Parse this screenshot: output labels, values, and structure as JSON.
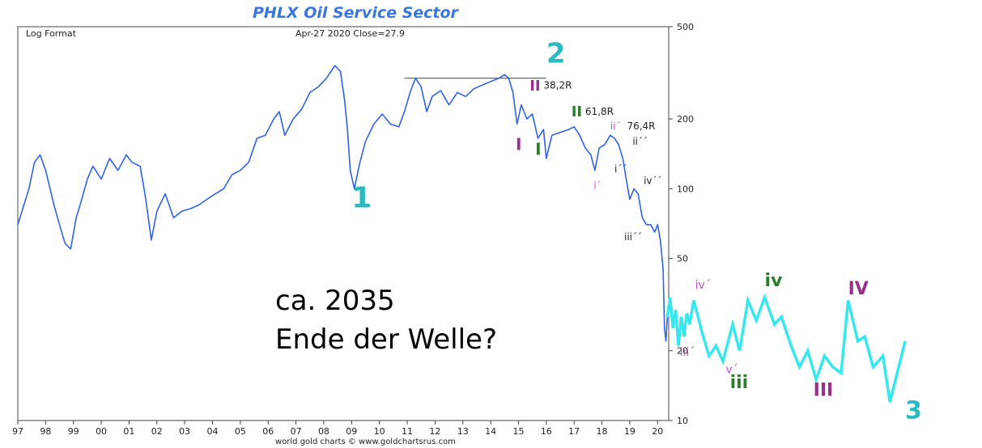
{
  "chart_data": {
    "type": "line",
    "title": "PHLX Oil Service Sector",
    "subtitle_left": "Log Format",
    "subtitle_center": "Apr-27  2020   Close=27.9",
    "credit": "world gold charts © www.goldchartsrus.com",
    "y_scale": "log",
    "ylim": [
      10,
      500
    ],
    "y_ticks": [
      "500",
      "200",
      "100",
      "50",
      "20",
      "10"
    ],
    "y_tick_values": [
      500,
      200,
      100,
      50,
      20,
      10
    ],
    "x_ticks": [
      "97",
      "98",
      "99",
      "00",
      "01",
      "02",
      "03",
      "04",
      "05",
      "06",
      "07",
      "08",
      "09",
      "10",
      "11",
      "12",
      "13",
      "14",
      "15",
      "16",
      "17",
      "18",
      "19",
      "20"
    ],
    "xlim": [
      1997.0,
      2020.4
    ],
    "colors": {
      "price": "#2f62e6",
      "projection": "#36e8ee",
      "title": "#3a76e0"
    },
    "series": [
      {
        "values": [
          [
            1997.0,
            70
          ],
          [
            1997.4,
            100
          ],
          [
            1997.6,
            130
          ],
          [
            1997.8,
            140
          ],
          [
            1998.0,
            120
          ],
          [
            1998.3,
            85
          ],
          [
            1998.5,
            70
          ],
          [
            1998.7,
            58
          ],
          [
            1998.9,
            55
          ],
          [
            1999.1,
            75
          ],
          [
            1999.3,
            90
          ],
          [
            1999.5,
            110
          ],
          [
            1999.7,
            125
          ],
          [
            2000.0,
            110
          ],
          [
            2000.3,
            135
          ],
          [
            2000.6,
            120
          ],
          [
            2000.9,
            140
          ],
          [
            2001.1,
            130
          ],
          [
            2001.4,
            125
          ],
          [
            2001.6,
            90
          ],
          [
            2001.8,
            60
          ],
          [
            2002.0,
            80
          ],
          [
            2002.3,
            95
          ],
          [
            2002.6,
            75
          ],
          [
            2002.9,
            80
          ],
          [
            2003.2,
            82
          ],
          [
            2003.5,
            85
          ],
          [
            2003.8,
            90
          ],
          [
            2004.1,
            95
          ],
          [
            2004.4,
            100
          ],
          [
            2004.7,
            115
          ],
          [
            2005.0,
            120
          ],
          [
            2005.3,
            130
          ],
          [
            2005.6,
            165
          ],
          [
            2005.9,
            170
          ],
          [
            2006.2,
            200
          ],
          [
            2006.4,
            215
          ],
          [
            2006.6,
            170
          ],
          [
            2006.9,
            200
          ],
          [
            2007.2,
            220
          ],
          [
            2007.5,
            260
          ],
          [
            2007.8,
            275
          ],
          [
            2008.1,
            300
          ],
          [
            2008.4,
            340
          ],
          [
            2008.6,
            320
          ],
          [
            2008.75,
            240
          ],
          [
            2008.85,
            180
          ],
          [
            2008.95,
            120
          ],
          [
            2009.1,
            100
          ],
          [
            2009.3,
            130
          ],
          [
            2009.5,
            160
          ],
          [
            2009.8,
            190
          ],
          [
            2010.1,
            210
          ],
          [
            2010.4,
            190
          ],
          [
            2010.7,
            185
          ],
          [
            2010.9,
            215
          ],
          [
            2011.1,
            260
          ],
          [
            2011.3,
            300
          ],
          [
            2011.5,
            275
          ],
          [
            2011.7,
            215
          ],
          [
            2011.9,
            250
          ],
          [
            2012.2,
            265
          ],
          [
            2012.5,
            230
          ],
          [
            2012.8,
            260
          ],
          [
            2013.1,
            250
          ],
          [
            2013.4,
            270
          ],
          [
            2013.7,
            280
          ],
          [
            2014.0,
            290
          ],
          [
            2014.3,
            300
          ],
          [
            2014.5,
            310
          ],
          [
            2014.65,
            300
          ],
          [
            2014.8,
            260
          ],
          [
            2014.95,
            190
          ],
          [
            2015.1,
            230
          ],
          [
            2015.3,
            200
          ],
          [
            2015.5,
            210
          ],
          [
            2015.7,
            165
          ],
          [
            2015.9,
            180
          ],
          [
            2016.0,
            135
          ],
          [
            2016.2,
            170
          ],
          [
            2016.5,
            175
          ],
          [
            2016.8,
            180
          ],
          [
            2017.0,
            185
          ],
          [
            2017.2,
            170
          ],
          [
            2017.4,
            150
          ],
          [
            2017.6,
            140
          ],
          [
            2017.75,
            120
          ],
          [
            2017.9,
            150
          ],
          [
            2018.1,
            155
          ],
          [
            2018.3,
            170
          ],
          [
            2018.45,
            165
          ],
          [
            2018.6,
            155
          ],
          [
            2018.75,
            135
          ],
          [
            2018.9,
            105
          ],
          [
            2019.0,
            90
          ],
          [
            2019.15,
            100
          ],
          [
            2019.3,
            95
          ],
          [
            2019.45,
            75
          ],
          [
            2019.6,
            70
          ],
          [
            2019.75,
            70
          ],
          [
            2019.9,
            65
          ],
          [
            2020.0,
            70
          ],
          [
            2020.1,
            60
          ],
          [
            2020.2,
            45
          ],
          [
            2020.25,
            25
          ],
          [
            2020.3,
            22
          ],
          [
            2020.35,
            27.9
          ]
        ]
      }
    ],
    "projection": {
      "values": [
        [
          2020.35,
          27.9
        ],
        [
          2020.45,
          34
        ],
        [
          2020.55,
          25
        ],
        [
          2020.65,
          30
        ],
        [
          2020.75,
          21
        ],
        [
          2020.85,
          28
        ],
        [
          2020.95,
          23
        ],
        [
          2021.05,
          29
        ],
        [
          2021.15,
          26
        ],
        [
          2021.3,
          33
        ],
        [
          2021.6,
          24
        ],
        [
          2021.85,
          19
        ],
        [
          2022.1,
          21
        ],
        [
          2022.35,
          18
        ],
        [
          2022.7,
          26
        ],
        [
          2022.95,
          20
        ],
        [
          2023.25,
          33
        ],
        [
          2023.55,
          27
        ],
        [
          2023.85,
          34
        ],
        [
          2024.2,
          26
        ],
        [
          2024.45,
          28
        ],
        [
          2024.8,
          21
        ],
        [
          2025.1,
          17
        ],
        [
          2025.4,
          20
        ],
        [
          2025.7,
          15
        ],
        [
          2026.0,
          19
        ],
        [
          2026.3,
          17
        ],
        [
          2026.6,
          16
        ],
        [
          2026.85,
          33
        ],
        [
          2027.2,
          22
        ],
        [
          2027.45,
          23
        ],
        [
          2027.75,
          17
        ],
        [
          2028.1,
          19
        ],
        [
          2028.35,
          12
        ],
        [
          2028.9,
          22
        ]
      ]
    },
    "resistance_line": {
      "x": [
        2010.9,
        2016.0
      ],
      "y": 300
    },
    "labels": [
      {
        "text": "1",
        "x": 2009.0,
        "y": 83,
        "color": "#2cbac1",
        "size": 36
      },
      {
        "text": "2",
        "x": 2016.0,
        "y": 350,
        "color": "#2cbac1",
        "size": 34
      },
      {
        "text": "II",
        "x": 2015.4,
        "y": 265,
        "color": "#9b2e8a",
        "size": 18
      },
      {
        "text": "38,2R",
        "x": 2015.9,
        "y": 270,
        "color": "#222222",
        "size": 12
      },
      {
        "text": "II",
        "x": 2016.9,
        "y": 205,
        "color": "#2e7d2e",
        "size": 18
      },
      {
        "text": "61,8R",
        "x": 2017.4,
        "y": 208,
        "color": "#222222",
        "size": 12
      },
      {
        "text": "ii´",
        "x": 2018.3,
        "y": 180,
        "color": "#c14fcf",
        "size": 12
      },
      {
        "text": "76,4R",
        "x": 2018.9,
        "y": 180,
        "color": "#222222",
        "size": 12
      },
      {
        "text": "I",
        "x": 2014.9,
        "y": 147,
        "color": "#9b2e8a",
        "size": 20
      },
      {
        "text": "I",
        "x": 2015.6,
        "y": 140,
        "color": "#2e7d2e",
        "size": 20
      },
      {
        "text": "ii´´",
        "x": 2019.1,
        "y": 155,
        "color": "#222222",
        "size": 12
      },
      {
        "text": "i´´",
        "x": 2018.45,
        "y": 118,
        "color": "#222222",
        "size": 12
      },
      {
        "text": "iv´´",
        "x": 2019.5,
        "y": 105,
        "color": "#222222",
        "size": 12
      },
      {
        "text": "i´",
        "x": 2017.7,
        "y": 100,
        "color": "#c14fcf",
        "size": 12
      },
      {
        "text": "iii´´",
        "x": 2018.8,
        "y": 60,
        "color": "#222222",
        "size": 12
      },
      {
        "text": "iv´",
        "x": 2021.35,
        "y": 37,
        "color": "#c14fcf",
        "size": 14
      },
      {
        "text": "iii´",
        "x": 2020.8,
        "y": 19,
        "color": "#c14fcf",
        "size": 14
      },
      {
        "text": "v´",
        "x": 2022.45,
        "y": 16,
        "color": "#c14fcf",
        "size": 14
      },
      {
        "text": "iii",
        "x": 2022.6,
        "y": 13.8,
        "color": "#2e7d2e",
        "size": 22
      },
      {
        "text": "iv",
        "x": 2023.85,
        "y": 38,
        "color": "#2e7d2e",
        "size": 22
      },
      {
        "text": "IV",
        "x": 2026.85,
        "y": 35,
        "color": "#9b2e8a",
        "size": 22
      },
      {
        "text": "III",
        "x": 2025.6,
        "y": 12.8,
        "color": "#9b2e8a",
        "size": 22
      },
      {
        "text": "3",
        "x": 2028.9,
        "y": 10.2,
        "color": "#2cbac1",
        "size": 30
      }
    ],
    "annotation": [
      "ca. 2035",
      "Ende der Welle?"
    ]
  }
}
